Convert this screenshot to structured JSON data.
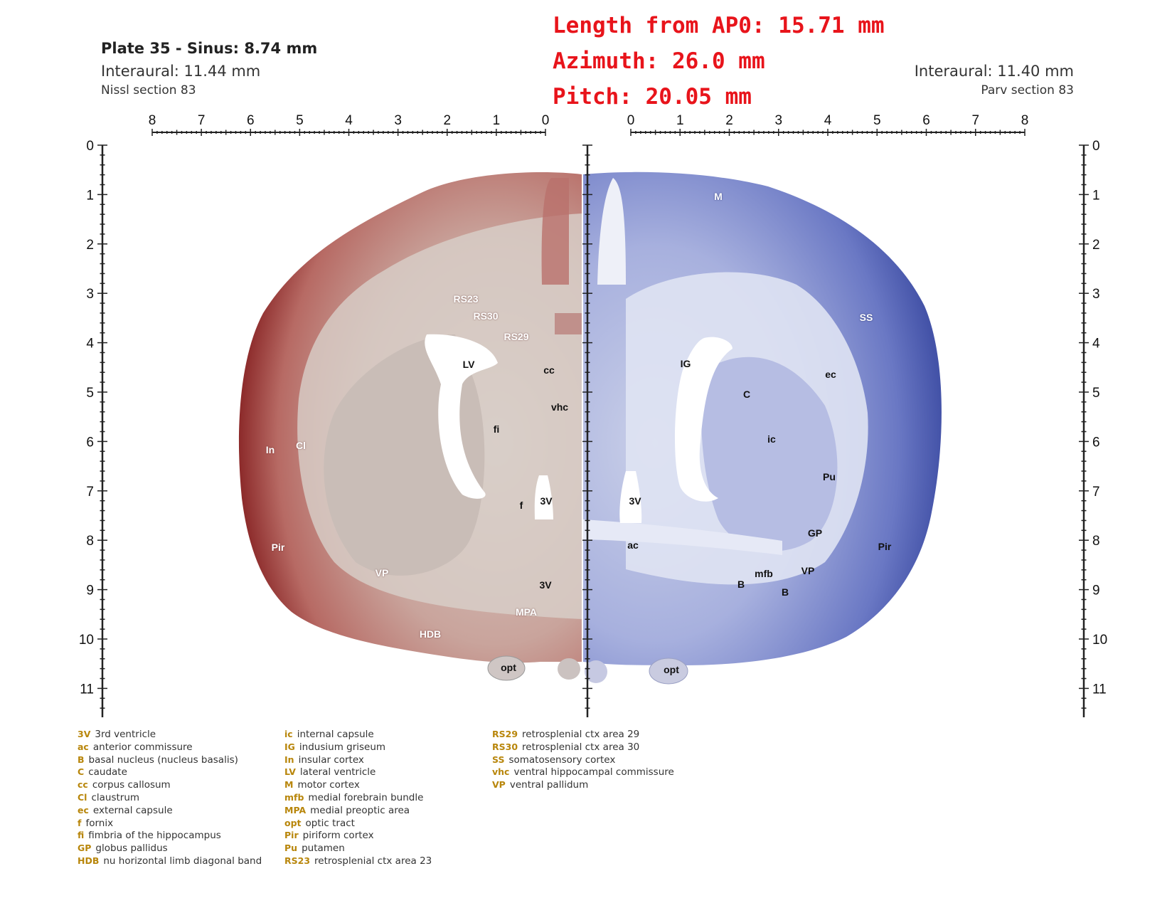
{
  "header": {
    "plate": "Plate 35 - Sinus: 8.74 mm",
    "left_interaural": "Interaural: 11.44 mm",
    "left_section": "Nissl section 83",
    "right_interaural": "Interaural: 11.40 mm",
    "right_section": "Parv section 83"
  },
  "overlay": {
    "length": "Length from AP0: 15.71 mm",
    "azimuth": "Azimuth: 26.0 mm",
    "pitch": "Pitch: 20.05 mm"
  },
  "rulers": {
    "top_left_labels": [
      "8",
      "7",
      "6",
      "5",
      "4",
      "3",
      "2",
      "1",
      "0"
    ],
    "top_right_labels": [
      "0",
      "1",
      "2",
      "3",
      "4",
      "5",
      "6",
      "7",
      "8"
    ],
    "vertical_labels": [
      "0",
      "1",
      "2",
      "3",
      "4",
      "5",
      "6",
      "7",
      "8",
      "9",
      "10",
      "11"
    ]
  },
  "colors": {
    "nissl_stain": "#a84a4a",
    "parv_stain": "#5260b0",
    "overlay_text": "#e8141b",
    "legend_abbr": "#b8860b"
  },
  "labels_left": [
    {
      "text": "RS23",
      "tone": "w"
    },
    {
      "text": "RS30",
      "tone": "w"
    },
    {
      "text": "RS29",
      "tone": "w"
    },
    {
      "text": "LV",
      "tone": "k"
    },
    {
      "text": "cc",
      "tone": "k"
    },
    {
      "text": "vhc",
      "tone": "k"
    },
    {
      "text": "fi",
      "tone": "k"
    },
    {
      "text": "In",
      "tone": "w"
    },
    {
      "text": "Cl",
      "tone": "w"
    },
    {
      "text": "f",
      "tone": "k"
    },
    {
      "text": "3V",
      "tone": "k"
    },
    {
      "text": "Pir",
      "tone": "w"
    },
    {
      "text": "VP",
      "tone": "w"
    },
    {
      "text": "3V",
      "tone": "k"
    },
    {
      "text": "MPA",
      "tone": "w"
    },
    {
      "text": "HDB",
      "tone": "w"
    },
    {
      "text": "opt",
      "tone": "k"
    }
  ],
  "labels_right": [
    {
      "text": "M",
      "tone": "wb"
    },
    {
      "text": "SS",
      "tone": "wb"
    },
    {
      "text": "IG",
      "tone": "k"
    },
    {
      "text": "ec",
      "tone": "k"
    },
    {
      "text": "C",
      "tone": "k"
    },
    {
      "text": "ic",
      "tone": "k"
    },
    {
      "text": "Pu",
      "tone": "k"
    },
    {
      "text": "3V",
      "tone": "k"
    },
    {
      "text": "GP",
      "tone": "k"
    },
    {
      "text": "ac",
      "tone": "k"
    },
    {
      "text": "Pir",
      "tone": "k"
    },
    {
      "text": "VP",
      "tone": "k"
    },
    {
      "text": "mfb",
      "tone": "k"
    },
    {
      "text": "B",
      "tone": "k"
    },
    {
      "text": "B",
      "tone": "k"
    },
    {
      "text": "opt",
      "tone": "k"
    }
  ],
  "legend": [
    [
      {
        "abbr": "3V",
        "desc": "3rd ventricle"
      },
      {
        "abbr": "ac",
        "desc": "anterior commissure"
      },
      {
        "abbr": "B",
        "desc": "basal nucleus (nucleus basalis)"
      },
      {
        "abbr": "C",
        "desc": "caudate"
      },
      {
        "abbr": "cc",
        "desc": "corpus callosum"
      },
      {
        "abbr": "Cl",
        "desc": "claustrum"
      },
      {
        "abbr": "ec",
        "desc": "external capsule"
      },
      {
        "abbr": "f",
        "desc": "fornix"
      },
      {
        "abbr": "fi",
        "desc": "fimbria of the hippocampus"
      },
      {
        "abbr": "GP",
        "desc": "globus pallidus"
      },
      {
        "abbr": "HDB",
        "desc": "nu horizontal limb diagonal band"
      }
    ],
    [
      {
        "abbr": "ic",
        "desc": "internal capsule"
      },
      {
        "abbr": "IG",
        "desc": "indusium griseum"
      },
      {
        "abbr": "In",
        "desc": "insular cortex"
      },
      {
        "abbr": "LV",
        "desc": "lateral ventricle"
      },
      {
        "abbr": "M",
        "desc": "motor cortex"
      },
      {
        "abbr": "mfb",
        "desc": "medial forebrain bundle"
      },
      {
        "abbr": "MPA",
        "desc": "medial preoptic area"
      },
      {
        "abbr": "opt",
        "desc": "optic tract"
      },
      {
        "abbr": "Pir",
        "desc": "piriform cortex"
      },
      {
        "abbr": "Pu",
        "desc": "putamen"
      },
      {
        "abbr": "RS23",
        "desc": "retrosplenial ctx area 23"
      }
    ],
    [
      {
        "abbr": "RS29",
        "desc": "retrosplenial ctx area 29"
      },
      {
        "abbr": "RS30",
        "desc": "retrosplenial ctx area 30"
      },
      {
        "abbr": "SS",
        "desc": "somatosensory cortex"
      },
      {
        "abbr": "vhc",
        "desc": "ventral hippocampal commissure"
      },
      {
        "abbr": "VP",
        "desc": "ventral pallidum"
      }
    ]
  ]
}
